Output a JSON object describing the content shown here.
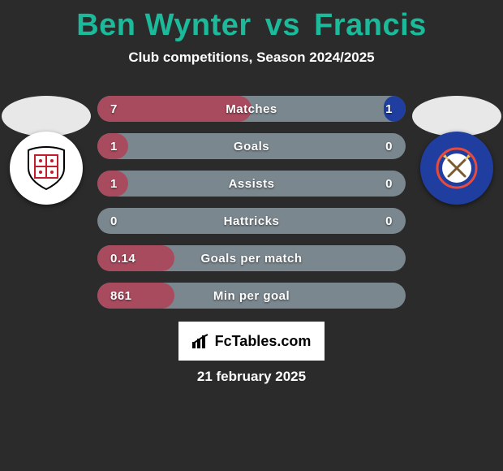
{
  "title": {
    "left": "Ben Wynter",
    "vs": "vs",
    "right": "Francis",
    "color": "#1aba9b"
  },
  "subtitle": "Club competitions, Season 2024/2025",
  "pitch_color": "#e8e8e8",
  "crest_left": {
    "bg": "#ffffff",
    "accent": "#c01d2e",
    "border": "#000000"
  },
  "crest_right": {
    "bg": "#1f3ea0",
    "accent": "#e84b3c",
    "swords": "#f2c14e",
    "text_ring": "#ffffff"
  },
  "bars": {
    "track_color": "#7a878e",
    "left_color": "#a84b5e",
    "right_color": "#1f3ea0",
    "rows": [
      {
        "label": "Matches",
        "left": "7",
        "right": "1",
        "left_pct": 50,
        "right_pct": 7
      },
      {
        "label": "Goals",
        "left": "1",
        "right": "0",
        "left_pct": 10,
        "right_pct": 0
      },
      {
        "label": "Assists",
        "left": "1",
        "right": "0",
        "left_pct": 10,
        "right_pct": 0
      },
      {
        "label": "Hattricks",
        "left": "0",
        "right": "0",
        "left_pct": 0,
        "right_pct": 0
      },
      {
        "label": "Goals per match",
        "left": "0.14",
        "right": "",
        "left_pct": 25,
        "right_pct": 0
      },
      {
        "label": "Min per goal",
        "left": "861",
        "right": "",
        "left_pct": 25,
        "right_pct": 0
      }
    ]
  },
  "branding": "FcTables.com",
  "date": "21 february 2025",
  "background": "#2b2b2b"
}
